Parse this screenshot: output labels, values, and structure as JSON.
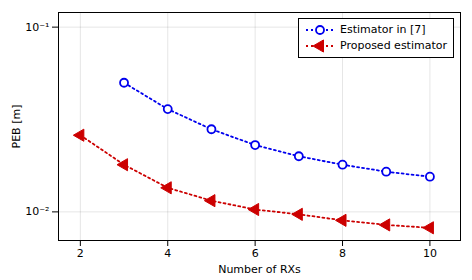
{
  "chart_data": {
    "type": "line",
    "x": [
      2,
      3,
      4,
      5,
      6,
      7,
      8,
      9,
      10
    ],
    "series": [
      {
        "name": "Estimator in [7]",
        "color": "#0000ee",
        "marker": "circle",
        "line_style": "dotted",
        "values": [
          null,
          0.05,
          0.036,
          0.028,
          0.023,
          0.02,
          0.018,
          0.0165,
          0.0155
        ]
      },
      {
        "name": "Proposed estimator",
        "color": "#cc0000",
        "marker": "triangle-left",
        "line_style": "dotted",
        "values": [
          0.026,
          0.018,
          0.0135,
          0.0115,
          0.0103,
          0.0097,
          0.009,
          0.0085,
          0.0082
        ]
      }
    ],
    "xlabel": "Number of RXs",
    "ylabel": "PEB [m]",
    "xlim": [
      1.5,
      10.7
    ],
    "ylim": [
      0.007,
      0.12
    ],
    "xticks": [
      2,
      4,
      6,
      8,
      10
    ],
    "yticks": [
      {
        "value": 0.01,
        "label": "10⁻²"
      },
      {
        "value": 0.1,
        "label": "10⁻¹"
      }
    ],
    "log": "y",
    "grid": true,
    "legend": "upper right"
  }
}
